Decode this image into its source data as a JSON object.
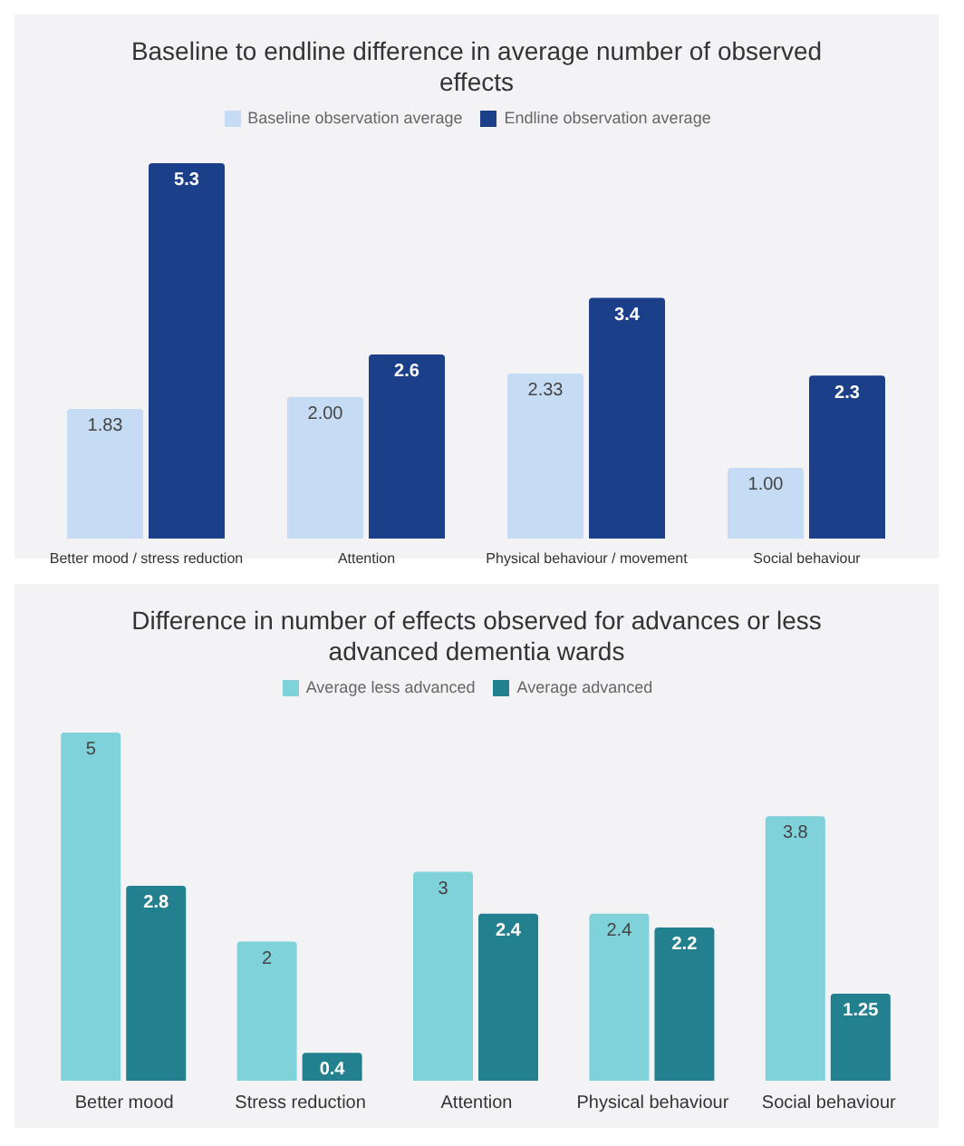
{
  "chart_data": [
    {
      "type": "bar",
      "title": "Baseline to endline difference in average number of observed effects",
      "categories": [
        "Better mood / stress reduction",
        "Attention",
        "Physical behaviour / movement",
        "Social behaviour"
      ],
      "legend": "top",
      "series": [
        {
          "name": "Baseline observation average",
          "color": "#c6dbf4",
          "values": [
            1.83,
            2.0,
            2.33,
            1.0
          ],
          "value_labels": [
            "1.83",
            "2.00",
            "2.33",
            "1.00"
          ]
        },
        {
          "name": "Endline observation average",
          "color": "#1c3f8a",
          "values": [
            5.3,
            2.6,
            3.4,
            2.3
          ],
          "value_labels": [
            "5.3",
            "2.6",
            "3.4",
            "2.3"
          ]
        }
      ]
    },
    {
      "type": "bar",
      "title": "Difference in number of effects observed for advances or less advanced dementia wards",
      "categories": [
        "Better mood",
        "Stress reduction",
        "Attention",
        "Physical behaviour",
        "Social behaviour"
      ],
      "legend": "top",
      "series": [
        {
          "name": "Average less advanced",
          "color": "#7fd2da",
          "values": [
            5,
            2,
            3,
            2.4,
            3.8
          ],
          "value_labels": [
            "5",
            "2",
            "3",
            "2.4",
            "3.8"
          ]
        },
        {
          "name": "Average advanced",
          "color": "#23808e",
          "values": [
            2.8,
            0.4,
            2.4,
            2.2,
            1.25
          ],
          "value_labels": [
            "2.8",
            "0.4",
            "2.4",
            "2.2",
            "1.25"
          ]
        }
      ]
    }
  ]
}
